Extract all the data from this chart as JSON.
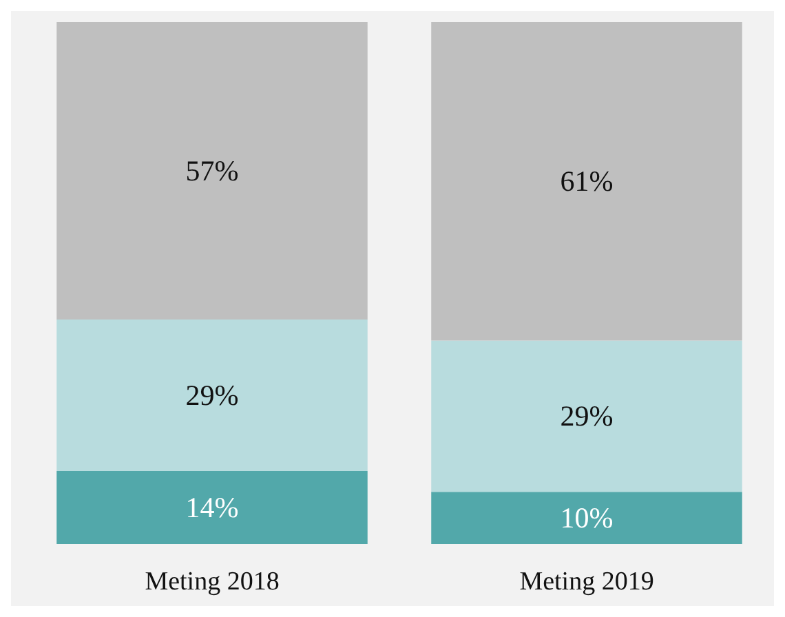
{
  "chart_data": {
    "type": "bar",
    "stacked": true,
    "categories": [
      "Meting 2018",
      "Meting 2019"
    ],
    "series": [
      {
        "color": "#52a8aa",
        "values": [
          14,
          10
        ],
        "value_labels": [
          "14%",
          "10%"
        ]
      },
      {
        "color": "#b8dcde",
        "values": [
          29,
          29
        ],
        "value_labels": [
          "29%",
          "29%"
        ]
      },
      {
        "color": "#bfbfbf",
        "values": [
          57,
          61
        ],
        "value_labels": [
          "57%",
          "61%"
        ]
      }
    ]
  }
}
